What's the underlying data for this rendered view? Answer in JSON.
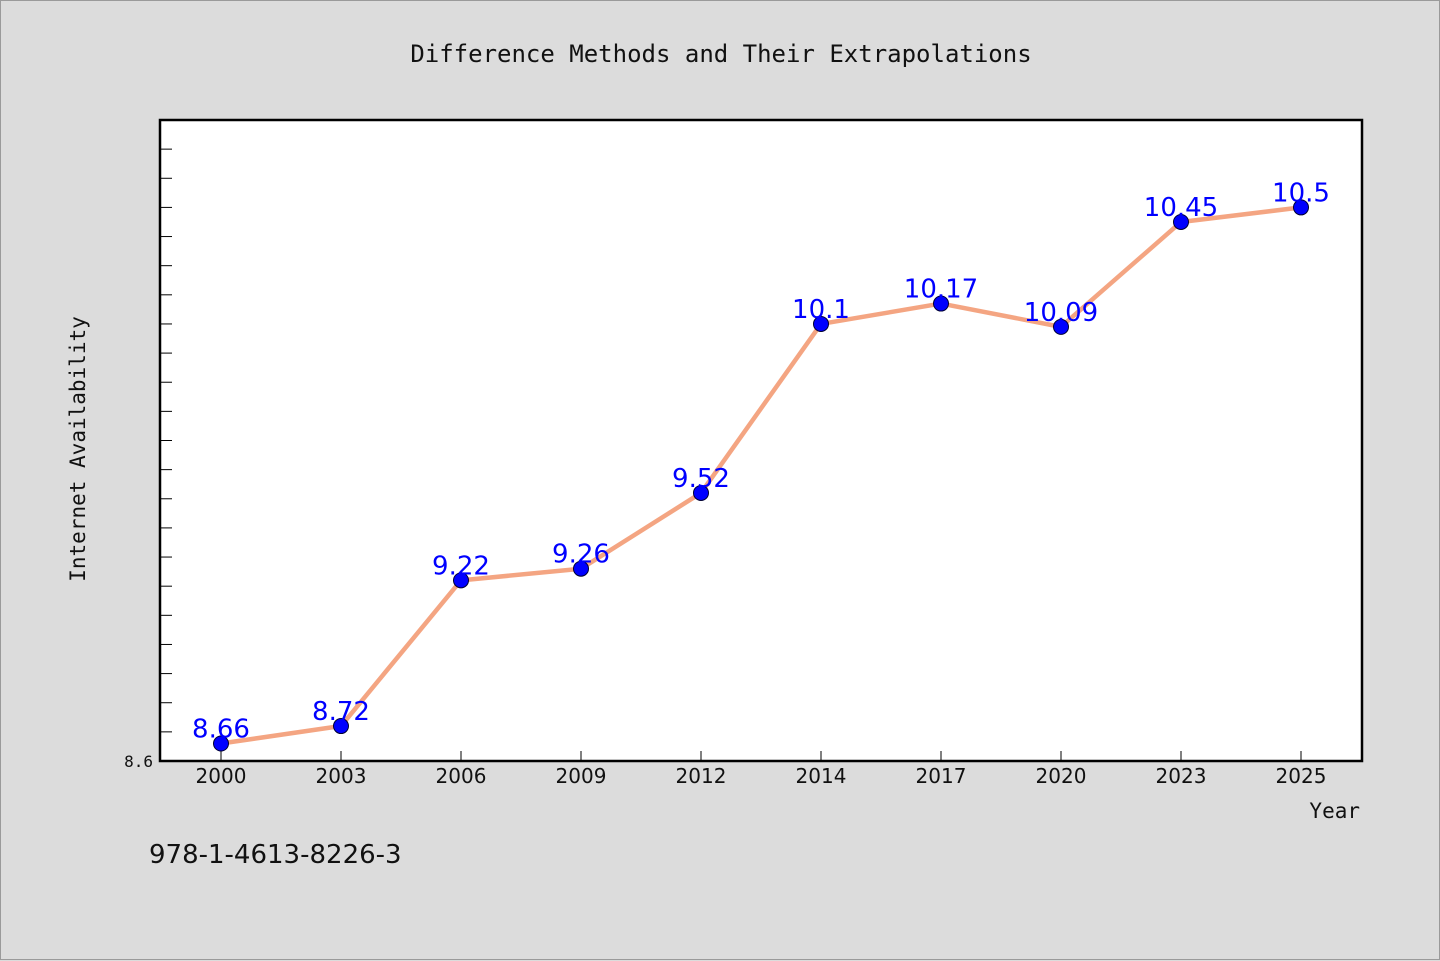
{
  "chart_data": {
    "type": "line",
    "title": "Difference Methods and Their Extrapolations",
    "xlabel": "Year",
    "ylabel": "Internet Availability",
    "categories": [
      "2000",
      "2003",
      "2006",
      "2009",
      "2012",
      "2014",
      "2017",
      "2020",
      "2023",
      "2025"
    ],
    "series": [
      {
        "values": [
          8.66,
          8.72,
          9.22,
          9.26,
          9.52,
          10.1,
          10.17,
          10.09,
          10.45,
          10.5
        ],
        "labels": [
          "8.66",
          "8.72",
          "9.22",
          "9.26",
          "9.52",
          "10.1",
          "10.17",
          "10.09",
          "10.45",
          "10.5"
        ],
        "line_color": "#f4a582",
        "marker_color": "#0000ff"
      }
    ],
    "ylim": [
      8.6,
      10.8
    ],
    "y_min_label": "8.6",
    "y_minor_tick_step": 0.1,
    "grid": false,
    "legend": "none"
  },
  "annotation": {
    "code": "978-1-4613-8226-3"
  }
}
